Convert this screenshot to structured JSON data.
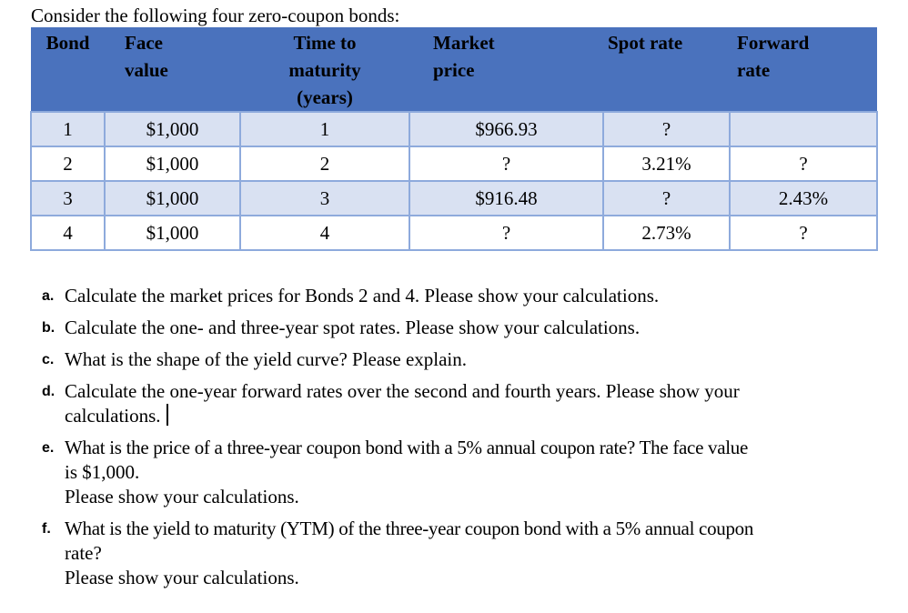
{
  "intro": "Consider the following four zero-coupon bonds:",
  "table": {
    "headers": {
      "bond": [
        "Bond"
      ],
      "face": [
        "Face",
        "value"
      ],
      "time": [
        "Time to",
        "maturity",
        "(years)"
      ],
      "market": [
        "Market",
        "price"
      ],
      "spot": [
        "Spot rate"
      ],
      "forward": [
        "Forward",
        "rate"
      ]
    },
    "rows": [
      {
        "bond": "1",
        "face": "$1,000",
        "time": "1",
        "market": "$966.93",
        "spot": "?",
        "forward": ""
      },
      {
        "bond": "2",
        "face": "$1,000",
        "time": "2",
        "market": "?",
        "spot": "3.21%",
        "forward": "?"
      },
      {
        "bond": "3",
        "face": "$1,000",
        "time": "3",
        "market": "$916.48",
        "spot": "?",
        "forward": "2.43%"
      },
      {
        "bond": "4",
        "face": "$1,000",
        "time": "4",
        "market": "?",
        "spot": "2.73%",
        "forward": "?"
      }
    ],
    "colors": {
      "header_bg": "#4a72bd",
      "band_bg": "#d9e1f2",
      "border": "#8eaadc"
    }
  },
  "questions": [
    {
      "marker": "a.",
      "lines": [
        "Calculate the market prices for Bonds 2 and 4. Please show your calculations."
      ]
    },
    {
      "marker": "b.",
      "lines": [
        "Calculate the one- and three-year spot rates. Please show your calculations."
      ]
    },
    {
      "marker": "c.",
      "lines": [
        "What is the shape of the yield curve? Please explain."
      ]
    },
    {
      "marker": "d.",
      "lines": [
        "Calculate the one-year forward rates over the second and fourth years. Please show your",
        "calculations."
      ]
    },
    {
      "marker": "e.",
      "lines": [
        "What is the price of a three-year coupon bond with a 5% annual coupon rate? The face value",
        "is $1,000.",
        "Please show your calculations."
      ]
    },
    {
      "marker": "f.",
      "lines": [
        "What is the yield to maturity (YTM) of the three-year coupon bond with a 5% annual coupon",
        "rate?",
        "Please show your calculations."
      ]
    }
  ]
}
